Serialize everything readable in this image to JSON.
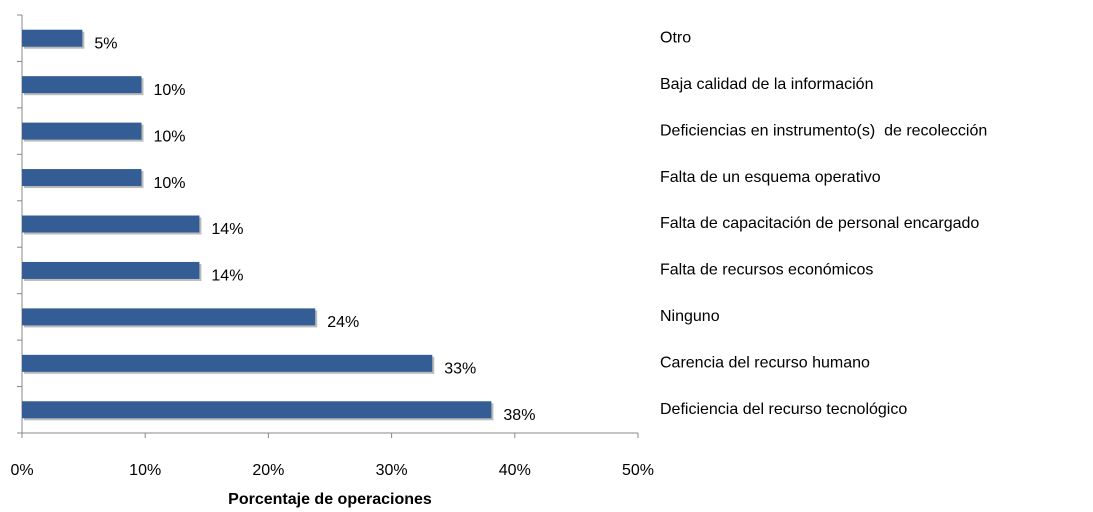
{
  "chart_data": {
    "type": "bar",
    "orientation": "horizontal",
    "x_label": "Porcentaje de operaciones",
    "categories": [
      "Otro",
      "Baja calidad de la información",
      "Deficiencias en instrumento(s)  de recolección",
      "Falta de un esquema operativo",
      "Falta de capacitación de personal encargado",
      "Falta de recursos económicos",
      "Ninguno",
      "Carencia del recurso humano",
      "Deficiencia del recurso tecnológico"
    ],
    "values": [
      4.9,
      9.7,
      9.7,
      9.7,
      14.4,
      14.4,
      23.8,
      33.3,
      38.1
    ],
    "value_labels": [
      "5%",
      "10%",
      "10%",
      "10%",
      "14%",
      "14%",
      "24%",
      "33%",
      "38%"
    ],
    "color": "#335d94",
    "xlim": [
      0,
      50
    ],
    "xticks": [
      {
        "value": 0,
        "label": "0%"
      },
      {
        "value": 10,
        "label": "10%"
      },
      {
        "value": 20,
        "label": "20%"
      },
      {
        "value": 30,
        "label": "30%"
      },
      {
        "value": 40,
        "label": "40%"
      },
      {
        "value": 50,
        "label": "50%"
      }
    ],
    "grid": false
  }
}
